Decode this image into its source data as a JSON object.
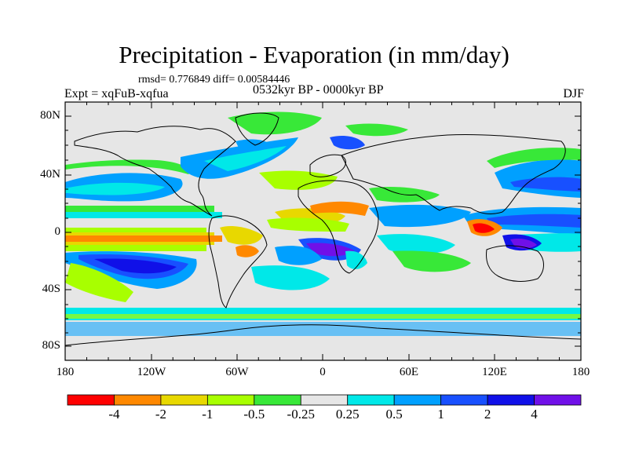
{
  "title": "Precipitation - Evaporation (in mm/day)",
  "stats": "rmsd= 0.776849 diff= 0.00584446",
  "experiment": "Expt = xqFuB-xqfua",
  "period": "0532kyr BP - 0000kyr BP",
  "season": "DJF",
  "lat_labels": [
    "80N",
    "40N",
    "0",
    "40S",
    "80S"
  ],
  "lon_labels": [
    "180",
    "120W",
    "60W",
    "0",
    "60E",
    "120E",
    "180"
  ],
  "colorbar": {
    "labels": [
      "-4",
      "-2",
      "-1",
      "-0.5",
      "-0.25",
      "0.25",
      "0.5",
      "1",
      "2",
      "4"
    ],
    "colors": [
      "#ff0000",
      "#ff8800",
      "#e8d800",
      "#a8ff00",
      "#38e838",
      "#e6e6e6",
      "#00e8e8",
      "#00a0ff",
      "#1850ff",
      "#1010e8",
      "#7010e8"
    ]
  }
}
